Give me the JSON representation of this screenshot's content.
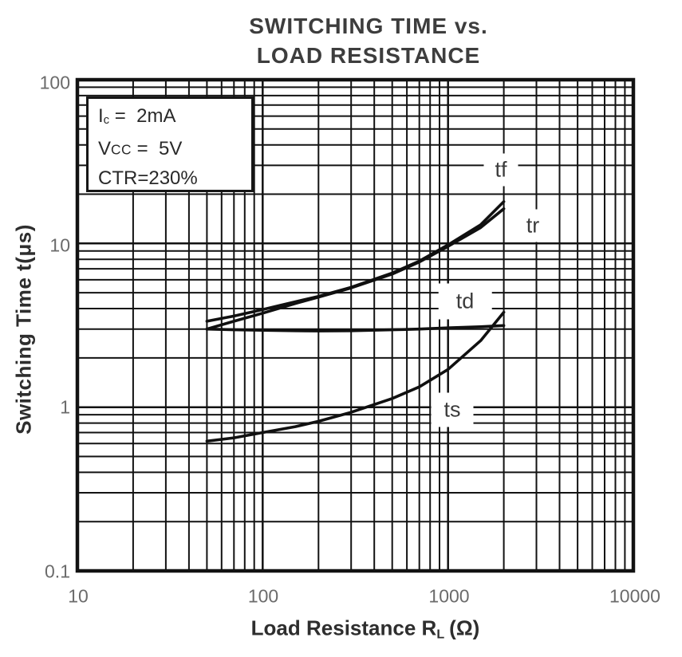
{
  "chart_data": {
    "type": "line",
    "title_line1": "SWITCHING TIME vs.",
    "title_line2": "LOAD RESISTANCE",
    "ylabel": "Switching Time  t(μs)",
    "xlabel": {
      "base": "Load Resistance R",
      "sub": "L",
      "unit": "(Ω)"
    },
    "x_axis": {
      "scale": "log",
      "min": 10,
      "max": 10000,
      "tick_labels": [
        "10",
        "100",
        "1000",
        "10000"
      ]
    },
    "y_axis": {
      "scale": "log",
      "min": 0.1,
      "max": 100,
      "tick_labels": [
        "100",
        "10",
        "1",
        "0.1"
      ]
    },
    "grid": "log-major-and-minor",
    "conditions": {
      "lines": [
        {
          "base": "I",
          "sub": "c",
          "value": " =  2mA"
        },
        {
          "base": "V",
          "sub": "CC",
          "value": " =  5V"
        },
        {
          "base": "CTR=230%",
          "sub": "",
          "value": ""
        }
      ]
    },
    "x": [
      50,
      70,
      100,
      150,
      200,
      300,
      500,
      700,
      1000,
      1500,
      2000
    ],
    "series": [
      {
        "name": "tf",
        "values": [
          3.35,
          3.6,
          3.95,
          4.4,
          4.75,
          5.4,
          6.6,
          7.8,
          9.8,
          13.0,
          18.0
        ]
      },
      {
        "name": "tr",
        "values": [
          3.0,
          3.35,
          3.75,
          4.3,
          4.7,
          5.35,
          6.5,
          7.7,
          9.6,
          12.5,
          16.3
        ]
      },
      {
        "name": "td",
        "values": [
          3.0,
          2.97,
          2.95,
          2.93,
          2.92,
          2.93,
          2.97,
          3.0,
          3.05,
          3.1,
          3.15
        ]
      },
      {
        "name": "ts",
        "values": [
          0.62,
          0.65,
          0.7,
          0.76,
          0.82,
          0.93,
          1.13,
          1.33,
          1.7,
          2.55,
          3.8
        ]
      }
    ],
    "colors": {
      "line": "#101010",
      "grid": "#121212",
      "tick_text": "#6b6b6b",
      "title_text": "#3d3d3d"
    }
  }
}
